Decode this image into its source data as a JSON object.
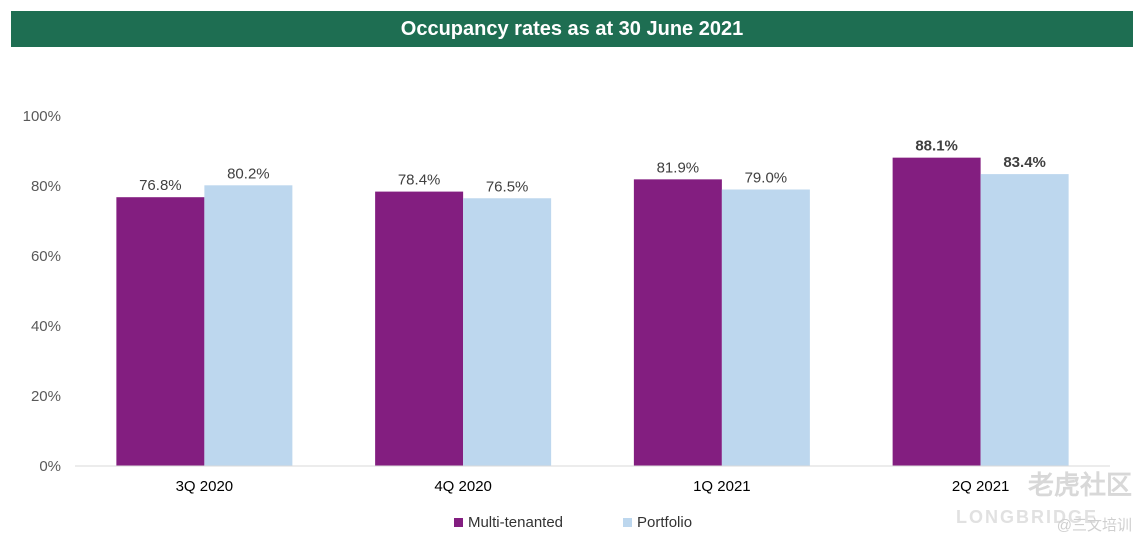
{
  "chart_data": {
    "type": "bar",
    "title": "Occupancy rates as at 30 June 2021",
    "categories": [
      "3Q 2020",
      "4Q 2020",
      "1Q 2021",
      "2Q 2021"
    ],
    "series": [
      {
        "name": "Multi-tenanted",
        "color": "#831e80",
        "values": [
          76.8,
          78.4,
          81.9,
          88.1
        ],
        "labels": [
          "76.8%",
          "78.4%",
          "81.9%",
          "88.1%"
        ]
      },
      {
        "name": "Portfolio",
        "color": "#bdd7ee",
        "values": [
          80.2,
          76.5,
          79.0,
          83.4
        ],
        "labels": [
          "80.2%",
          "76.5%",
          "79.0%",
          "83.4%"
        ]
      }
    ],
    "bold_last_category_labels": true,
    "ylim": [
      0,
      100
    ],
    "yticks": [
      "0%",
      "20%",
      "40%",
      "60%",
      "80%",
      "100%"
    ],
    "grid": false,
    "legend_position": "bottom"
  },
  "watermark": {
    "main": "老虎社区",
    "sub": "LONGBRIDGE",
    "tag": "@三文培训"
  }
}
